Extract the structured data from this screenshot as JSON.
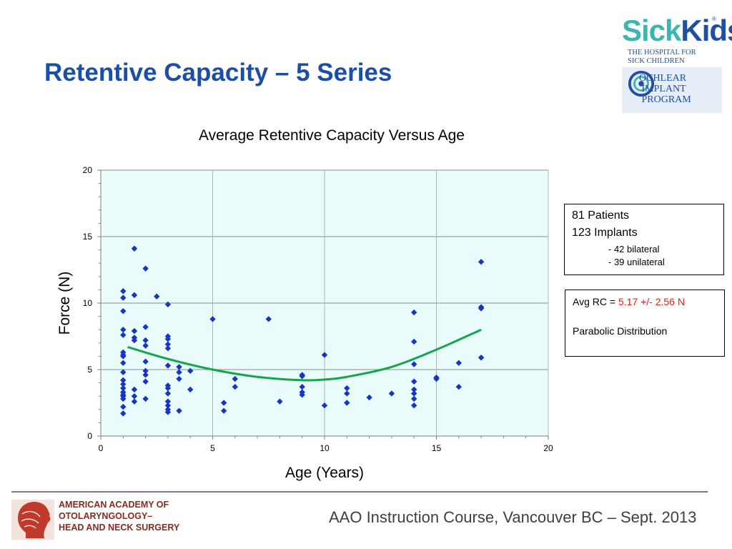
{
  "slide": {
    "title": "Retentive Capacity – 5 Series",
    "footer": "AAO Instruction Course, Vancouver BC – Sept. 2013"
  },
  "sickkids_logo": {
    "sick": "Sick",
    "kids": "Kids",
    "registered": "®",
    "subtitle": "THE HOSPITAL FOR\nSICK CHILDREN",
    "program": "OCHLEAR\n IMPLANT\n PROGRAM"
  },
  "aao_logo": {
    "text": "AMERICAN ACADEMY OF\nOTOLARYNGOLOGY–\nHEAD AND NECK SURGERY"
  },
  "info_box_patients": {
    "line1": "81 Patients",
    "line2": "123 Implants",
    "line3": "- 42 bilateral",
    "line4": "- 39 unilateral"
  },
  "info_box_rc": {
    "prefix": "Avg RC = ",
    "value": "5.17 +/- 2.56 N",
    "distribution": "Parabolic Distribution"
  },
  "colors": {
    "title": "#1b4fa6",
    "plot_background": "#e9fbfb",
    "points": "#1436c2",
    "trendline": "#13a64a",
    "rc_value": "#e0201b"
  },
  "chart_data": {
    "type": "scatter",
    "title": "Average Retentive Capacity Versus Age",
    "xlabel": "Age (Years)",
    "ylabel": "Force (N)",
    "xlim": [
      0,
      20
    ],
    "ylim": [
      0,
      20
    ],
    "xticks": [
      0,
      5,
      10,
      15,
      20
    ],
    "yticks": [
      0,
      5,
      10,
      15,
      20
    ],
    "grid": true,
    "legend": "none",
    "marker": "diamond",
    "points": [
      [
        1,
        10.9
      ],
      [
        1,
        10.4
      ],
      [
        1,
        9.4
      ],
      [
        1,
        8.0
      ],
      [
        1,
        7.6
      ],
      [
        1,
        6.3
      ],
      [
        1,
        6.1
      ],
      [
        1,
        6.0
      ],
      [
        1,
        5.5
      ],
      [
        1,
        4.8
      ],
      [
        1,
        4.2
      ],
      [
        1,
        3.9
      ],
      [
        1,
        3.6
      ],
      [
        1,
        3.3
      ],
      [
        1,
        3.1
      ],
      [
        1,
        3.0
      ],
      [
        1,
        2.8
      ],
      [
        1,
        2.2
      ],
      [
        1,
        1.7
      ],
      [
        1.5,
        14.1
      ],
      [
        1.5,
        10.6
      ],
      [
        1.5,
        7.9
      ],
      [
        1.5,
        7.4
      ],
      [
        1.5,
        7.2
      ],
      [
        1.5,
        3.5
      ],
      [
        1.5,
        3.0
      ],
      [
        1.5,
        2.6
      ],
      [
        2,
        12.6
      ],
      [
        2,
        8.2
      ],
      [
        2,
        7.2
      ],
      [
        2,
        6.8
      ],
      [
        2,
        5.6
      ],
      [
        2,
        4.9
      ],
      [
        2,
        4.6
      ],
      [
        2,
        4.1
      ],
      [
        2,
        2.8
      ],
      [
        2.5,
        10.5
      ],
      [
        3,
        9.9
      ],
      [
        3,
        7.5
      ],
      [
        3,
        7.3
      ],
      [
        3,
        6.9
      ],
      [
        3,
        6.6
      ],
      [
        3,
        5.3
      ],
      [
        3,
        3.8
      ],
      [
        3,
        3.6
      ],
      [
        3,
        3.2
      ],
      [
        3,
        2.6
      ],
      [
        3,
        2.3
      ],
      [
        3,
        2.0
      ],
      [
        3,
        1.8
      ],
      [
        3.5,
        5.2
      ],
      [
        3.5,
        4.8
      ],
      [
        3.5,
        4.3
      ],
      [
        3.5,
        1.9
      ],
      [
        4,
        4.9
      ],
      [
        4,
        3.5
      ],
      [
        5,
        8.8
      ],
      [
        5.5,
        2.5
      ],
      [
        5.5,
        1.9
      ],
      [
        6,
        4.3
      ],
      [
        6,
        3.7
      ],
      [
        7.5,
        8.8
      ],
      [
        8,
        2.6
      ],
      [
        9,
        4.6
      ],
      [
        9,
        4.5
      ],
      [
        9,
        3.7
      ],
      [
        9,
        3.3
      ],
      [
        9,
        3.1
      ],
      [
        10,
        6.1
      ],
      [
        10,
        2.3
      ],
      [
        11,
        3.6
      ],
      [
        11,
        3.2
      ],
      [
        11,
        2.5
      ],
      [
        12,
        2.9
      ],
      [
        13,
        3.2
      ],
      [
        14,
        9.3
      ],
      [
        14,
        7.1
      ],
      [
        14,
        5.4
      ],
      [
        14,
        4.1
      ],
      [
        14,
        3.5
      ],
      [
        14,
        3.2
      ],
      [
        14,
        2.8
      ],
      [
        14,
        2.3
      ],
      [
        15,
        4.4
      ],
      [
        15,
        4.3
      ],
      [
        16,
        5.5
      ],
      [
        16,
        3.7
      ],
      [
        17,
        13.1
      ],
      [
        17,
        9.7
      ],
      [
        17,
        9.6
      ],
      [
        17,
        5.9
      ]
    ],
    "trendline": {
      "type": "parabolic",
      "x": [
        1.2,
        3,
        5,
        7,
        9,
        10,
        11,
        13,
        15,
        17
      ],
      "y": [
        6.7,
        5.8,
        5.0,
        4.45,
        4.2,
        4.25,
        4.45,
        5.2,
        6.5,
        8.0
      ]
    }
  }
}
